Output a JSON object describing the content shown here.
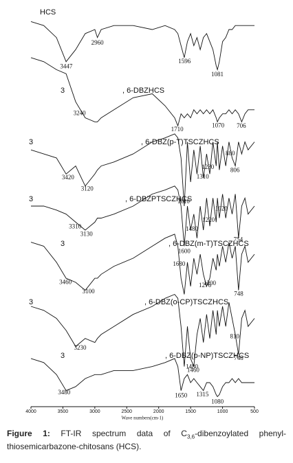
{
  "chart_data": {
    "type": "line",
    "x_label": "Wave numbers(cm-1)",
    "xlim": [
      4000,
      500
    ],
    "xticks": [
      4000,
      3500,
      3000,
      2500,
      2000,
      1500,
      1000,
      500
    ],
    "ylim": [
      0,
      100
    ],
    "color": "#111111",
    "x": [
      4000,
      3800,
      3600,
      3450,
      3300,
      3150,
      3000,
      2960,
      2900,
      2700,
      2400,
      2100,
      1900,
      1750,
      1700,
      1650,
      1600,
      1550,
      1500,
      1450,
      1400,
      1350,
      1300,
      1250,
      1200,
      1150,
      1100,
      1080,
      1050,
      1000,
      950,
      900,
      850,
      800,
      750,
      700,
      650,
      600,
      500
    ],
    "series": [
      {
        "name": "HCS",
        "peaks": [
          3447,
          2960,
          1596,
          1081
        ],
        "values": [
          96,
          95,
          92,
          86,
          89,
          93,
          94,
          92,
          94,
          95,
          95,
          94,
          95,
          94,
          93,
          90,
          87,
          91,
          93,
          90,
          92,
          89,
          92,
          93,
          91,
          89,
          85,
          84,
          86,
          91,
          92,
          94,
          94,
          95,
          95,
          95,
          95,
          95,
          95
        ]
      },
      {
        "prefix": "3",
        "name": ", 6-DBZHCS",
        "peaks": [
          3240,
          1710,
          1070,
          706
        ],
        "values": [
          87,
          86,
          84,
          83,
          76,
          72,
          71,
          71,
          72,
          74,
          77,
          78,
          75,
          72,
          70,
          73,
          72,
          73,
          72,
          74,
          73,
          74,
          73,
          74,
          73,
          74,
          72,
          71,
          72,
          73,
          73,
          74,
          73,
          74,
          73,
          71,
          73,
          74,
          74
        ]
      },
      {
        "prefix": "3",
        "name": ", 6-DBZ(p-T)TSCZHCS",
        "peaks": [
          3420,
          3120,
          1610,
          1310,
          1230,
          880,
          806
        ],
        "values": [
          64,
          63,
          62,
          58,
          60,
          55,
          58,
          59,
          60,
          61,
          63,
          66,
          67,
          68,
          67,
          62,
          50,
          66,
          56,
          64,
          58,
          65,
          57,
          63,
          58,
          66,
          60,
          66,
          59,
          65,
          60,
          66,
          62,
          60,
          66,
          63,
          66,
          64,
          66
        ]
      },
      {
        "prefix": "3",
        "name": ", 6-DBZPTSCZHCS",
        "peaks": [
          3310,
          3130,
          1600,
          1480,
          1220,
          1020,
          754
        ],
        "values": [
          50,
          50,
          49,
          48,
          46,
          44,
          46,
          47,
          47,
          48,
          50,
          53,
          54,
          55,
          54,
          50,
          40,
          50,
          44,
          48,
          42,
          50,
          44,
          52,
          45,
          52,
          46,
          52,
          47,
          53,
          47,
          52,
          48,
          53,
          42,
          50,
          52,
          48,
          50
        ]
      },
      {
        "prefix": "3",
        "name": ", 6-DBZ(m-T)TSCZHCS",
        "peaks": [
          3460,
          3100,
          1680,
          1276,
          1200,
          748
        ],
        "values": [
          41,
          40,
          36,
          32,
          31,
          29,
          32,
          32,
          33,
          35,
          37,
          40,
          42,
          43,
          40,
          32,
          28,
          36,
          30,
          37,
          33,
          38,
          33,
          30,
          32,
          37,
          34,
          38,
          35,
          40,
          36,
          41,
          37,
          40,
          29,
          38,
          40,
          36,
          38
        ]
      },
      {
        "prefix": "3",
        "name": ", 6-DBZ(o-CP)TSCZHCS",
        "peaks": [
          3230,
          1480,
          1460,
          810,
          748
        ],
        "values": [
          25,
          24,
          22,
          19,
          15,
          17,
          16,
          17,
          18,
          20,
          23,
          25,
          27,
          28,
          27,
          20,
          10,
          20,
          12,
          10,
          18,
          22,
          16,
          23,
          17,
          24,
          18,
          24,
          20,
          25,
          20,
          26,
          22,
          18,
          13,
          22,
          24,
          20,
          22
        ]
      },
      {
        "prefix": "3",
        "name": ", 6-DBZ(p-NP)TSCZHCS",
        "peaks": [
          3480,
          1650,
          1315,
          1080
        ],
        "values": [
          12,
          11,
          8,
          4,
          5,
          7,
          8,
          8,
          8,
          9,
          9,
          10,
          11,
          12,
          10,
          4,
          7,
          8,
          6,
          7,
          6,
          5,
          4,
          6,
          6,
          5,
          3,
          2.5,
          3,
          5,
          6,
          6,
          7,
          6,
          7,
          6,
          6,
          6,
          6
        ]
      }
    ]
  },
  "caption": {
    "label": "Figure 1:",
    "text_before": "FT-IR spectrum data of C",
    "subscript": "3,6",
    "text_after": "-dibenzoylated phenyl-thiosemicarbazone-chitosans (HCS)."
  }
}
